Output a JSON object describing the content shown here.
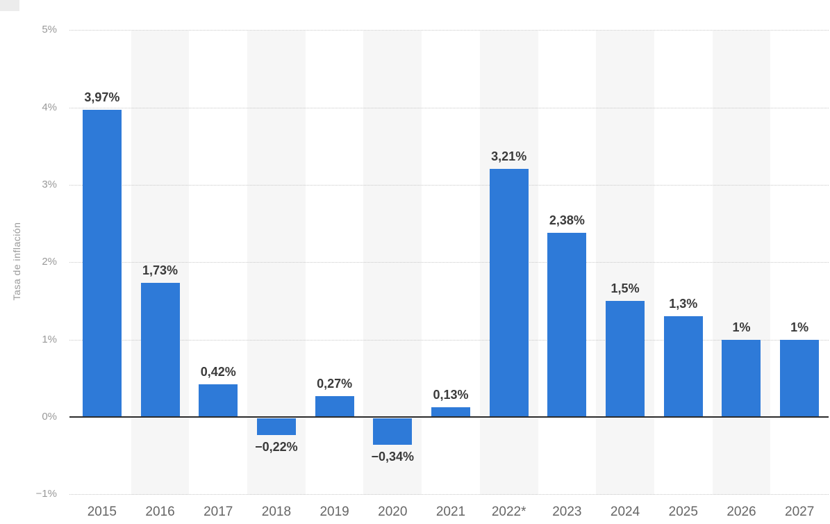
{
  "chart_data": {
    "type": "bar",
    "title": "",
    "xlabel": "",
    "ylabel": "Tasa de inflación",
    "categories": [
      "2015",
      "2016",
      "2017",
      "2018",
      "2019",
      "2020",
      "2021",
      "2022*",
      "2023",
      "2024",
      "2025",
      "2026",
      "2027"
    ],
    "values": [
      3.97,
      1.73,
      0.42,
      -0.22,
      0.27,
      -0.34,
      0.13,
      3.21,
      2.38,
      1.5,
      1.3,
      1.0,
      1.0
    ],
    "value_labels": [
      "3,97%",
      "1,73%",
      "0,42%",
      "−0,22%",
      "0,27%",
      "−0,34%",
      "0,13%",
      "3,21%",
      "2,38%",
      "1,5%",
      "1,3%",
      "1%",
      "1%"
    ],
    "y_ticks": [
      5,
      4,
      3,
      2,
      1,
      0,
      -1
    ],
    "y_tick_labels": [
      "5%",
      "4%",
      "3%",
      "2%",
      "1%",
      "0%",
      "−1%"
    ],
    "ylim": [
      -1,
      5
    ],
    "grid": "horizontal-dotted",
    "legend": "none",
    "colors": {
      "bar": "#2e7ad8",
      "band": "#f6f6f6",
      "zero_line": "#2b2b2b",
      "gridline": "#c8c8c8",
      "value_label": "#3a3a3a",
      "x_tick": "#666666",
      "y_tick": "#999999",
      "axis_title": "#9a9a9a"
    }
  }
}
